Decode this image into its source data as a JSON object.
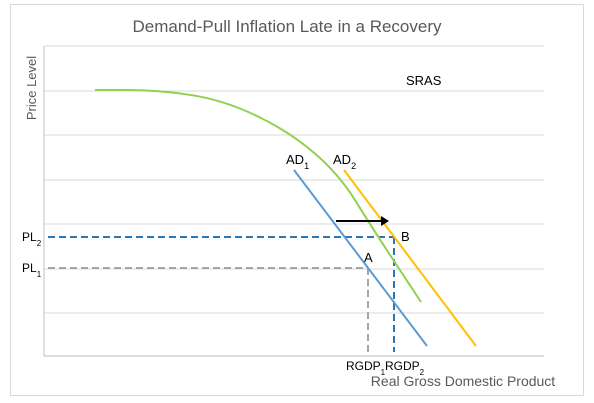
{
  "chart_data": {
    "type": "line",
    "title": "Demand-Pull Inflation Late in a Recovery",
    "xlabel": "Real Gross Domestic Product",
    "ylabel": "Price Level",
    "grid": "horizontal",
    "series": [
      {
        "name": "AD",
        "subscript": "1",
        "color": "#5b9bd5",
        "points": [
          [
            0.0,
            1.0
          ],
          [
            1.0,
            0.0
          ]
        ]
      },
      {
        "name": "AD",
        "subscript": "2",
        "color": "#ffc000",
        "points": [
          [
            0.0,
            1.0
          ],
          [
            1.0,
            0.0
          ]
        ]
      },
      {
        "name": "SRAS",
        "subscript": "",
        "color": "#92d050",
        "points": [
          [
            0.0,
            0.0
          ],
          [
            0.2,
            0.0
          ],
          [
            0.4,
            0.05
          ],
          [
            0.6,
            0.2
          ],
          [
            0.75,
            0.4
          ],
          [
            0.85,
            0.65
          ],
          [
            1.0,
            1.0
          ]
        ]
      }
    ],
    "equilibria": [
      {
        "label": "A",
        "price_label": "PL",
        "price_sub": "1",
        "output_label": "RGDP",
        "output_sub": "1",
        "guide_color": "#a6a6a6"
      },
      {
        "label": "B",
        "price_label": "PL",
        "price_sub": "2",
        "output_label": "RGDP",
        "output_sub": "2",
        "guide_color": "#2e75b6"
      }
    ],
    "annotation": {
      "type": "arrow",
      "meaning": "shift from AD1 to AD2",
      "color": "#000000"
    }
  },
  "colors": {
    "axis": "#bfbfbf",
    "grid": "#d9d9d9",
    "text": "#595959",
    "title": "#595959"
  }
}
